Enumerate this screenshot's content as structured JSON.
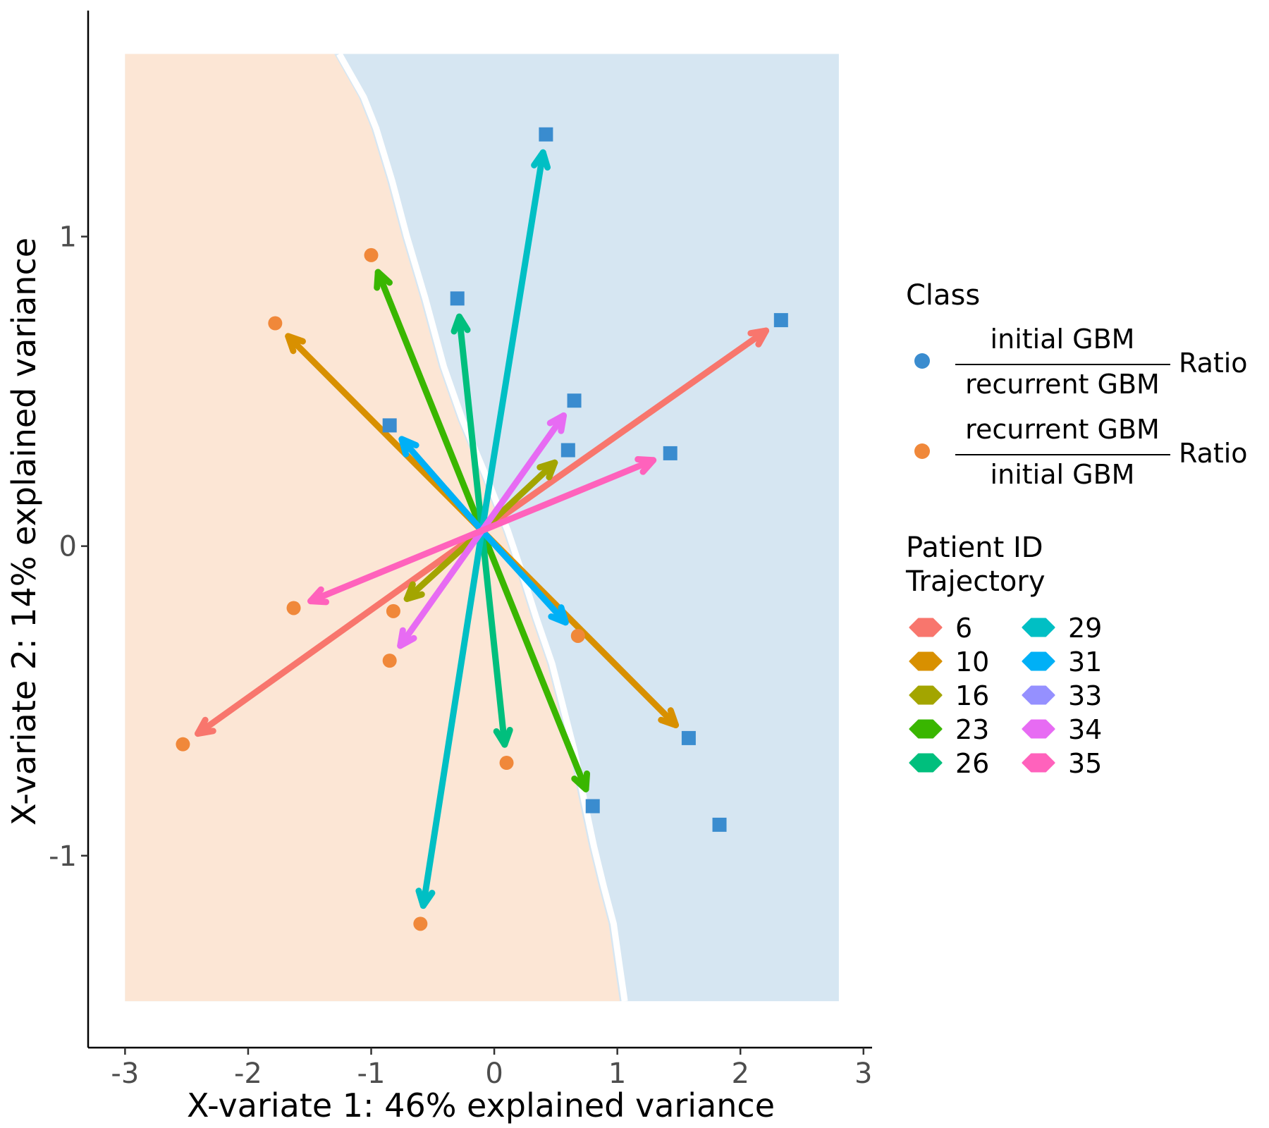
{
  "chart_data": {
    "type": "scatter",
    "xlabel": "X-variate 1: 46% explained variance",
    "ylabel": "X-variate 2: 14% explained variance",
    "xlim": [
      -3.3,
      3.07
    ],
    "ylim": [
      -1.62,
      1.73
    ],
    "x_ticks": [
      "-3",
      "-2",
      "-1",
      "0",
      "1",
      "2",
      "3"
    ],
    "y_ticks": [
      "-1",
      "0",
      "1"
    ],
    "grid": false,
    "background_regions": {
      "initial_color": "#d6e6f2",
      "recurrent_color": "#fce6d5",
      "x_range": [
        -3.0,
        2.8
      ],
      "y_range": [
        -1.47,
        1.59
      ],
      "boundary": [
        [
          1.02,
          -1.47
        ],
        [
          0.98,
          -1.36
        ],
        [
          0.93,
          -1.22
        ],
        [
          0.85,
          -1.1
        ],
        [
          0.77,
          -0.97
        ],
        [
          0.69,
          -0.82
        ],
        [
          0.61,
          -0.66
        ],
        [
          0.52,
          -0.52
        ],
        [
          0.43,
          -0.38
        ],
        [
          0.3,
          -0.23
        ],
        [
          0.18,
          -0.08
        ],
        [
          0.07,
          0.05
        ],
        [
          -0.1,
          0.22
        ],
        [
          -0.3,
          0.41
        ],
        [
          -0.45,
          0.58
        ],
        [
          -0.6,
          0.8
        ],
        [
          -0.75,
          1.0
        ],
        [
          -0.87,
          1.18
        ],
        [
          -1.0,
          1.35
        ],
        [
          -1.1,
          1.45
        ],
        [
          -1.3,
          1.59
        ]
      ]
    },
    "centroid": [
      -0.1,
      0.05
    ],
    "class_points": {
      "initial": [
        [
          -0.3,
          0.8
        ],
        [
          0.42,
          1.33
        ],
        [
          -0.85,
          0.39
        ],
        [
          0.6,
          0.31
        ],
        [
          0.65,
          0.47
        ],
        [
          1.43,
          0.3
        ],
        [
          2.33,
          0.73
        ],
        [
          1.58,
          -0.62
        ],
        [
          0.8,
          -0.84
        ],
        [
          1.83,
          -0.9
        ]
      ],
      "recurrent": [
        [
          -1.0,
          0.94
        ],
        [
          -1.78,
          0.72
        ],
        [
          -0.85,
          -0.37
        ],
        [
          -0.82,
          -0.21
        ],
        [
          -1.63,
          -0.2
        ],
        [
          -2.53,
          -0.64
        ],
        [
          0.1,
          -0.7
        ],
        [
          -0.6,
          -1.22
        ],
        [
          0.68,
          -0.29
        ]
      ]
    },
    "series": [
      {
        "name": "6",
        "color": "#f8766d",
        "arrows": [
          [
            2.33,
            0.73
          ],
          [
            -2.53,
            -0.64
          ]
        ]
      },
      {
        "name": "10",
        "color": "#d89000",
        "arrows": [
          [
            -1.78,
            0.72
          ],
          [
            1.58,
            -0.62
          ]
        ]
      },
      {
        "name": "16",
        "color": "#a3a500",
        "arrows": [
          [
            0.6,
            0.31
          ],
          [
            -0.82,
            -0.21
          ]
        ]
      },
      {
        "name": "23",
        "color": "#39b600",
        "arrows": [
          [
            -1.0,
            0.94
          ],
          [
            0.8,
            -0.84
          ]
        ]
      },
      {
        "name": "26",
        "color": "#00bf7d",
        "arrows": [
          [
            -0.3,
            0.8
          ],
          [
            0.1,
            -0.7
          ]
        ]
      },
      {
        "name": "29",
        "color": "#00bfc4",
        "arrows": [
          [
            0.42,
            1.33
          ],
          [
            -0.6,
            -1.22
          ]
        ]
      },
      {
        "name": "31",
        "color": "#00b0f6",
        "arrows": [
          [
            -0.85,
            0.39
          ],
          [
            0.68,
            -0.29
          ]
        ]
      },
      {
        "name": "33",
        "color": "#9590ff",
        "arrows": []
      },
      {
        "name": "34",
        "color": "#e76bf3",
        "arrows": [
          [
            0.65,
            0.47
          ],
          [
            -0.85,
            -0.37
          ]
        ]
      },
      {
        "name": "35",
        "color": "#ff62bc",
        "arrows": [
          [
            1.43,
            0.3
          ],
          [
            -1.63,
            -0.2
          ]
        ]
      }
    ],
    "legend": {
      "placement": "right",
      "class_title": "Class",
      "class_items": [
        {
          "numerator": "initial GBM",
          "denominator": "recurrent GBM",
          "suffix": "Ratio",
          "color": "#3a8ccf",
          "shape": "circle"
        },
        {
          "numerator": "recurrent GBM",
          "denominator": "initial GBM",
          "suffix": "Ratio",
          "color": "#f0883a",
          "shape": "circle"
        }
      ],
      "traj_title_line1": "Patient ID",
      "traj_title_line2": "Trajectory"
    }
  }
}
